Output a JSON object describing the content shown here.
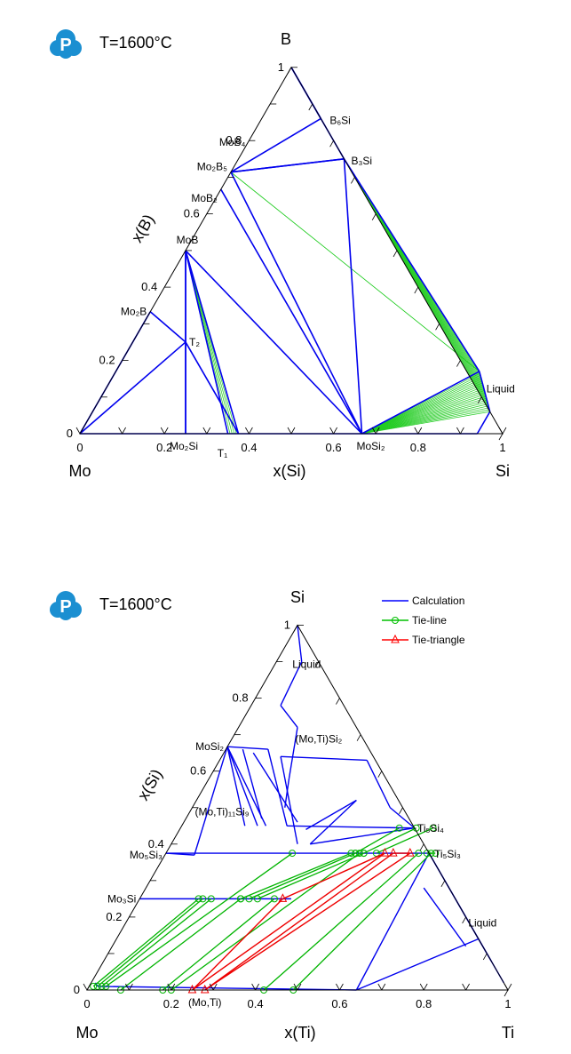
{
  "chart_data": [
    {
      "type": "ternary",
      "temperature_label": "T=1600°C",
      "apex_labels": {
        "top": "B",
        "left": "Mo",
        "right": "Si"
      },
      "axis_labels": {
        "bottom": "x(Si)",
        "left": "x(B)"
      },
      "bottom_ticks": [
        "0",
        "0.2",
        "0.4",
        "0.6",
        "0.8",
        "1"
      ],
      "left_ticks": [
        "0",
        "0.2",
        "0.4",
        "0.6",
        "0.8",
        "1"
      ],
      "phases": [
        {
          "label": "B₆Si",
          "xSi": 0.14,
          "xB": 0.86
        },
        {
          "label": "B₃Si",
          "xSi": 0.25,
          "xB": 0.75
        },
        {
          "label": "MoB₄",
          "xSi": 0.0,
          "xB": 0.8
        },
        {
          "label": "Mo₂B₅",
          "xSi": 0.0,
          "xB": 0.714
        },
        {
          "label": "MoB₂",
          "xSi": 0.0,
          "xB": 0.667
        },
        {
          "label": "MoB",
          "xSi": 0.0,
          "xB": 0.5
        },
        {
          "label": "Mo₂B",
          "xSi": 0.0,
          "xB": 0.333
        },
        {
          "label": "T₂",
          "xSi": 0.125,
          "xB": 0.25
        },
        {
          "label": "T₁",
          "xSi": 0.375,
          "xB": 0.0
        },
        {
          "label": "Mo₂Si",
          "xSi": 0.25,
          "xB": 0.0
        },
        {
          "label": "MoSi₂",
          "xSi": 0.667,
          "xB": 0.0
        },
        {
          "label": "Liquid",
          "xSi": 0.94,
          "xB": 0.06
        }
      ],
      "calculation_lines": [
        [
          [
            0.0,
            1.0
          ],
          [
            0.14,
            0.86
          ]
        ],
        [
          [
            0.0,
            1.0
          ],
          [
            0.25,
            0.75
          ]
        ],
        [
          [
            0.0,
            0.714
          ],
          [
            0.14,
            0.86
          ]
        ],
        [
          [
            0.0,
            0.714
          ],
          [
            0.25,
            0.75
          ]
        ],
        [
          [
            0.0,
            0.714
          ],
          [
            0.667,
            0.0
          ]
        ],
        [
          [
            0.0,
            0.714
          ],
          [
            0.25,
            0.75
          ]
        ],
        [
          [
            0.0,
            0.667
          ],
          [
            0.667,
            0.0
          ]
        ],
        [
          [
            0.0,
            0.5
          ],
          [
            0.667,
            0.0
          ]
        ],
        [
          [
            0.0,
            0.5
          ],
          [
            0.125,
            0.25
          ]
        ],
        [
          [
            0.0,
            0.5
          ],
          [
            0.25,
            0.0
          ]
        ],
        [
          [
            0.0,
            0.5
          ],
          [
            0.375,
            0.0
          ]
        ],
        [
          [
            0.0,
            0.5
          ],
          [
            0.35,
            0.0
          ]
        ],
        [
          [
            0.0,
            0.333
          ],
          [
            0.125,
            0.25
          ]
        ],
        [
          [
            0.0,
            0.333
          ],
          [
            0.0,
            0.0
          ]
        ],
        [
          [
            0.125,
            0.25
          ],
          [
            0.0,
            0.0
          ]
        ],
        [
          [
            0.125,
            0.25
          ],
          [
            0.25,
            0.0
          ]
        ],
        [
          [
            0.125,
            0.25
          ],
          [
            0.375,
            0.0
          ]
        ],
        [
          [
            0.25,
            0.75
          ],
          [
            0.667,
            0.0
          ]
        ],
        [
          [
            0.25,
            0.75
          ],
          [
            0.86,
            0.17
          ]
        ],
        [
          [
            0.86,
            0.17
          ],
          [
            0.667,
            0.0
          ]
        ],
        [
          [
            0.86,
            0.17
          ],
          [
            0.94,
            0.06
          ]
        ],
        [
          [
            0.94,
            0.06
          ],
          [
            0.94,
            0.0
          ]
        ],
        [
          [
            0.0,
            0.0
          ],
          [
            0.667,
            0.0
          ]
        ],
        [
          [
            0.667,
            0.0
          ],
          [
            0.94,
            0.0
          ]
        ]
      ],
      "tie_line_fans": [
        {
          "from": [
            [
              0.0,
              0.714
            ],
            [
              0.0,
              0.714
            ]
          ],
          "to": [
            [
              0.86,
              0.17
            ],
            [
              0.86,
              0.17
            ]
          ],
          "count": 2
        },
        {
          "from": [
            [
              0.25,
              0.75
            ],
            [
              0.25,
              0.75
            ]
          ],
          "to": [
            [
              0.86,
              0.17
            ],
            [
              0.94,
              0.06
            ]
          ],
          "count": 14
        },
        {
          "from": [
            [
              0.667,
              0.0
            ],
            [
              0.667,
              0.0
            ]
          ],
          "to": [
            [
              0.86,
              0.17
            ],
            [
              0.94,
              0.06
            ]
          ],
          "count": 22
        },
        {
          "from": [
            [
              0.0,
              0.5
            ],
            [
              0.0,
              0.5
            ]
          ],
          "to": [
            [
              0.35,
              0.0
            ],
            [
              0.375,
              0.0
            ]
          ],
          "count": 6
        }
      ]
    },
    {
      "type": "ternary",
      "temperature_label": "T=1600°C",
      "apex_labels": {
        "top": "Si",
        "left": "Mo",
        "right": "Ti"
      },
      "axis_labels": {
        "bottom": "x(Ti)",
        "left": "x(Si)"
      },
      "bottom_ticks": [
        "0",
        "0.2",
        "0.4",
        "0.6",
        "0.8",
        "1"
      ],
      "left_ticks": [
        "0",
        "0.2",
        "0.4",
        "0.6",
        "0.8",
        "1"
      ],
      "legend": [
        {
          "label": "Calculation",
          "color": "#0000ff",
          "marker": "none"
        },
        {
          "label": "Tie-line",
          "color": "#00c000",
          "marker": "circle"
        },
        {
          "label": "Tie-triangle",
          "color": "#ff0000",
          "marker": "triangle"
        }
      ],
      "phases": [
        {
          "label": "Liquid",
          "xTi": 0.05,
          "xSi": 0.8
        },
        {
          "label": "(Mo,Ti)Si₂",
          "xTi": 0.15,
          "xSi": 0.63
        },
        {
          "label": "MoSi₂",
          "xTi": 0.0,
          "xSi": 0.667
        },
        {
          "label": "(Mo,Ti)₁₁Si₉",
          "xTi": 0.35,
          "xSi": 0.45
        },
        {
          "label": "Ti₅Si₄",
          "xTi": 0.556,
          "xSi": 0.444
        },
        {
          "label": "Mo₅Si₃",
          "xTi": 0.0,
          "xSi": 0.375
        },
        {
          "label": "Ti₅Si₃",
          "xTi": 0.625,
          "xSi": 0.375
        },
        {
          "label": "Mo₃Si",
          "xTi": 0.0,
          "xSi": 0.25
        },
        {
          "label": "Liquid",
          "xTi": 0.85,
          "xSi": 0.12
        },
        {
          "label": "(Mo,Ti)",
          "xTi": 0.28,
          "xSi": 0.0
        }
      ],
      "calculation_lines": [
        [
          [
            0.06,
            0.9
          ],
          [
            0.0,
            1.0
          ]
        ],
        [
          [
            0.06,
            0.9
          ],
          [
            0.07,
            0.78
          ]
        ],
        [
          [
            0.07,
            0.78
          ],
          [
            0.14,
            0.72
          ]
        ],
        [
          [
            0.14,
            0.72
          ],
          [
            0.19,
            0.58
          ]
        ],
        [
          [
            0.19,
            0.58
          ],
          [
            0.22,
            0.5
          ]
        ],
        [
          [
            0.0,
            0.667
          ],
          [
            0.1,
            0.66
          ]
        ],
        [
          [
            0.1,
            0.66
          ],
          [
            0.25,
            0.45
          ]
        ],
        [
          [
            0.0,
            0.667
          ],
          [
            0.15,
            0.45
          ]
        ],
        [
          [
            0.0,
            0.667
          ],
          [
            0.2,
            0.45
          ]
        ],
        [
          [
            0.0,
            0.667
          ],
          [
            0.07,
            0.37
          ]
        ],
        [
          [
            0.0,
            0.667
          ],
          [
            0.18,
            0.45
          ]
        ],
        [
          [
            0.04,
            0.66
          ],
          [
            0.18,
            0.47
          ]
        ],
        [
          [
            0.07,
            0.65
          ],
          [
            0.27,
            0.46
          ]
        ],
        [
          [
            0.14,
            0.64
          ],
          [
            0.3,
            0.4
          ]
        ],
        [
          [
            0.14,
            0.64
          ],
          [
            0.35,
            0.63
          ]
        ],
        [
          [
            0.35,
            0.63
          ],
          [
            0.47,
            0.5
          ]
        ],
        [
          [
            0.25,
            0.45
          ],
          [
            0.556,
            0.444
          ]
        ],
        [
          [
            0.3,
            0.44
          ],
          [
            0.38,
            0.52
          ]
        ],
        [
          [
            0.38,
            0.52
          ],
          [
            0.33,
            0.4
          ]
        ],
        [
          [
            0.47,
            0.5
          ],
          [
            0.556,
            0.444
          ]
        ],
        [
          [
            0.33,
            0.4
          ],
          [
            0.556,
            0.444
          ]
        ],
        [
          [
            0.0,
            0.375
          ],
          [
            0.625,
            0.375
          ]
        ],
        [
          [
            0.0,
            0.25
          ],
          [
            0.36,
            0.25
          ]
        ],
        [
          [
            0.02,
            0.01
          ],
          [
            0.64,
            0.0
          ]
        ],
        [
          [
            0.625,
            0.375
          ],
          [
            0.64,
            0.0
          ]
        ],
        [
          [
            0.625,
            0.375
          ],
          [
            0.92,
            0.08
          ]
        ],
        [
          [
            0.625,
            0.375
          ],
          [
            0.86,
            0.14
          ]
        ],
        [
          [
            0.66,
            0.28
          ],
          [
            0.84,
            0.12
          ]
        ],
        [
          [
            0.64,
            0.0
          ],
          [
            0.86,
            0.14
          ]
        ],
        [
          [
            0.86,
            0.14
          ],
          [
            0.98,
            0.02
          ]
        ],
        [
          [
            0.0,
            0.375
          ],
          [
            0.07,
            0.37
          ]
        ],
        [
          [
            0.01,
            0.02
          ],
          [
            0.02,
            0.01
          ]
        ]
      ],
      "tie_lines": [
        [
          [
            0.01,
            0.01
          ],
          [
            0.14,
            0.25
          ]
        ],
        [
          [
            0.02,
            0.01
          ],
          [
            0.15,
            0.25
          ]
        ],
        [
          [
            0.03,
            0.01
          ],
          [
            0.17,
            0.25
          ]
        ],
        [
          [
            0.04,
            0.01
          ],
          [
            0.3,
            0.375
          ]
        ],
        [
          [
            0.08,
            0.0
          ],
          [
            0.24,
            0.25
          ]
        ],
        [
          [
            0.18,
            0.0
          ],
          [
            0.32,
            0.25
          ]
        ],
        [
          [
            0.2,
            0.0
          ],
          [
            0.46,
            0.375
          ]
        ],
        [
          [
            0.42,
            0.0
          ],
          [
            0.6,
            0.375
          ]
        ],
        [
          [
            0.49,
            0.0
          ],
          [
            0.63,
            0.375
          ]
        ],
        [
          [
            0.24,
            0.25
          ],
          [
            0.44,
            0.375
          ]
        ],
        [
          [
            0.26,
            0.25
          ],
          [
            0.45,
            0.375
          ]
        ],
        [
          [
            0.28,
            0.25
          ],
          [
            0.47,
            0.375
          ]
        ],
        [
          [
            0.45,
            0.375
          ],
          [
            0.52,
            0.444
          ]
        ],
        [
          [
            0.47,
            0.375
          ],
          [
            0.56,
            0.444
          ]
        ],
        [
          [
            0.5,
            0.375
          ],
          [
            0.6,
            0.444
          ]
        ],
        [
          [
            0.62,
            0.375
          ],
          [
            0.64,
            0.375
          ]
        ]
      ],
      "tie_triangles": [
        [
          [
            0.25,
            0.0
          ],
          [
            0.52,
            0.375
          ],
          [
            0.34,
            0.25
          ]
        ],
        [
          [
            0.28,
            0.0
          ],
          [
            0.54,
            0.375
          ],
          [
            0.58,
            0.375
          ]
        ]
      ]
    }
  ]
}
